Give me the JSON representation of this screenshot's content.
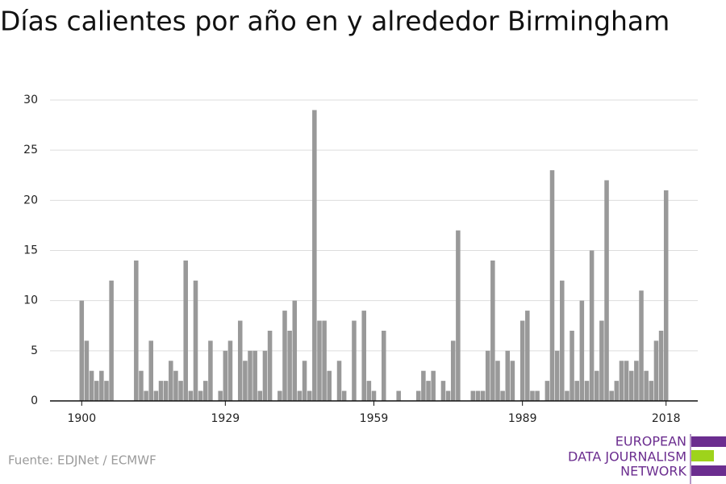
{
  "chart_data": {
    "type": "bar",
    "title": "Días calientes por año en y alrededor Birmingham",
    "source": "Fuente: EDJNet / ECMWF",
    "logo": [
      "EUROPEAN",
      "DATA JOURNALISM",
      "NETWORK"
    ],
    "color": "#999999",
    "x": [
      1900,
      1901,
      1902,
      1903,
      1904,
      1905,
      1906,
      1907,
      1908,
      1909,
      1910,
      1911,
      1912,
      1913,
      1914,
      1915,
      1916,
      1917,
      1918,
      1919,
      1920,
      1921,
      1922,
      1923,
      1924,
      1925,
      1926,
      1927,
      1928,
      1929,
      1930,
      1931,
      1932,
      1933,
      1934,
      1935,
      1936,
      1937,
      1938,
      1939,
      1940,
      1941,
      1942,
      1943,
      1944,
      1945,
      1946,
      1947,
      1948,
      1949,
      1950,
      1951,
      1952,
      1953,
      1954,
      1955,
      1956,
      1957,
      1958,
      1959,
      1960,
      1961,
      1962,
      1963,
      1964,
      1965,
      1966,
      1967,
      1968,
      1969,
      1970,
      1971,
      1972,
      1973,
      1974,
      1975,
      1976,
      1977,
      1978,
      1979,
      1980,
      1981,
      1982,
      1983,
      1984,
      1985,
      1986,
      1987,
      1988,
      1989,
      1990,
      1991,
      1992,
      1993,
      1994,
      1995,
      1996,
      1997,
      1998,
      1999,
      2000,
      2001,
      2002,
      2003,
      2004,
      2005,
      2006,
      2007,
      2008,
      2009,
      2010,
      2011,
      2012,
      2013,
      2014,
      2015,
      2016,
      2017,
      2018
    ],
    "values": [
      10,
      6,
      3,
      2,
      3,
      2,
      12,
      0,
      0,
      0,
      0,
      14,
      3,
      1,
      6,
      1,
      2,
      2,
      4,
      3,
      2,
      14,
      1,
      12,
      1,
      2,
      6,
      0,
      1,
      5,
      6,
      0,
      8,
      4,
      5,
      5,
      1,
      5,
      7,
      0,
      1,
      9,
      7,
      10,
      1,
      4,
      1,
      29,
      8,
      8,
      3,
      0,
      4,
      1,
      0,
      8,
      0,
      9,
      2,
      1,
      0,
      7,
      0,
      0,
      1,
      0,
      0,
      0,
      1,
      3,
      2,
      3,
      0,
      2,
      1,
      6,
      17,
      0,
      0,
      1,
      1,
      1,
      5,
      14,
      4,
      1,
      5,
      4,
      0,
      8,
      9,
      1,
      1,
      0,
      2,
      23,
      5,
      12,
      1,
      7,
      2,
      10,
      2,
      15,
      3,
      8,
      22,
      1,
      2,
      4,
      4,
      3,
      4,
      11,
      3,
      2,
      6,
      7,
      21
    ],
    "xlim": [
      1893.6,
      2024.4
    ],
    "xticks": [
      1900,
      1929,
      1959,
      1989,
      2018
    ],
    "ylim": [
      0,
      30
    ],
    "yticks": [
      0,
      5,
      10,
      15,
      20,
      25,
      30
    ],
    "grid": true
  }
}
